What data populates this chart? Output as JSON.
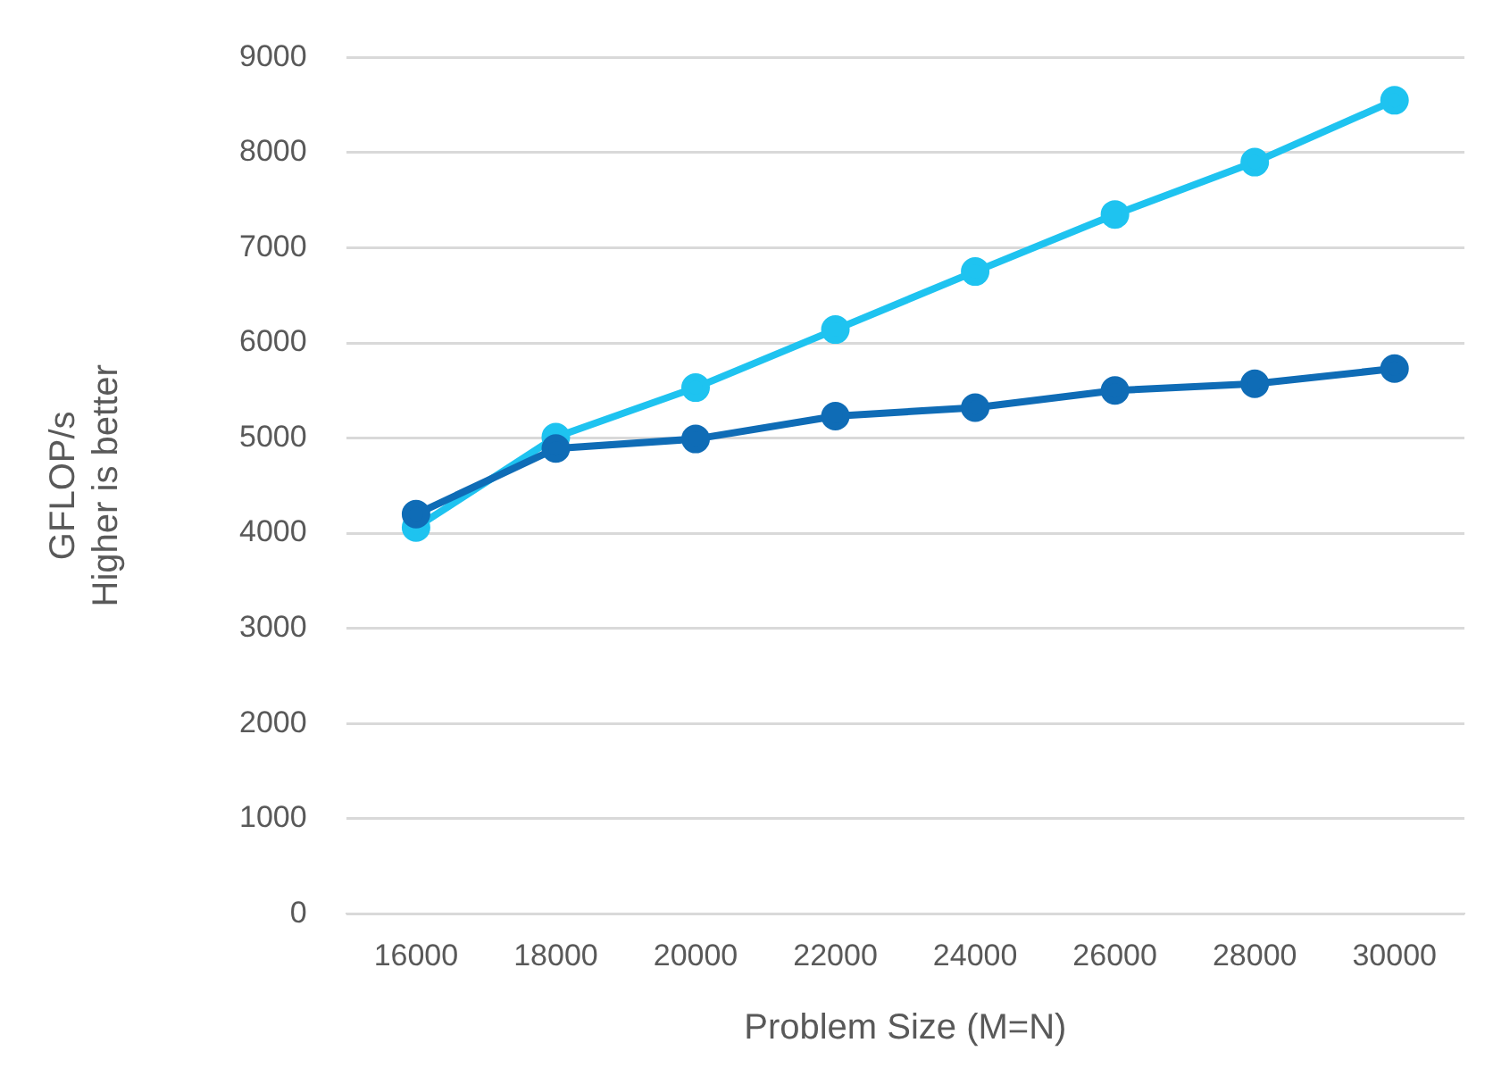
{
  "chart_data": {
    "type": "line",
    "xlabel": "Problem Size (M=N)",
    "ylabel": "GFLOP/s\nHigher is better",
    "categories": [
      "16000",
      "18000",
      "20000",
      "22000",
      "24000",
      "26000",
      "28000",
      "30000"
    ],
    "series": [
      {
        "color": "#0f6cb6",
        "values": [
          4200,
          4890,
          4990,
          5230,
          5320,
          5500,
          5570,
          5730
        ]
      },
      {
        "color": "#1ec3f0",
        "values": [
          4060,
          5010,
          5530,
          6140,
          6750,
          7350,
          7900,
          8550
        ]
      }
    ],
    "ylim": [
      0,
      9000
    ],
    "yticks": [
      0,
      1000,
      2000,
      3000,
      4000,
      5000,
      6000,
      7000,
      8000,
      9000
    ],
    "grid": "y",
    "legend": false,
    "marker": "circle",
    "line_style": "solid"
  }
}
